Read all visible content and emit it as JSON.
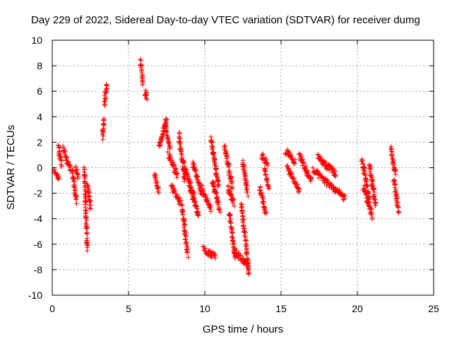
{
  "chart_data": {
    "type": "scatter",
    "title": "Day 229 of 2022, Sidereal Day-to-day VTEC variation (SDTVAR) for receiver dumg",
    "xlabel": "GPS time / hours",
    "ylabel": "SDTVAR / TECUs",
    "xlim": [
      0,
      25
    ],
    "ylim": [
      -10,
      10
    ],
    "xticks": [
      0,
      5,
      10,
      15,
      20,
      25
    ],
    "yticks": [
      -10,
      -8,
      -6,
      -4,
      -2,
      0,
      2,
      4,
      6,
      8,
      10
    ],
    "grid": true,
    "marker": "+",
    "color": "#ff0000",
    "segments": [
      {
        "x0": 0.1,
        "x1": 0.45,
        "y0": -0.3,
        "y1": -0.8
      },
      {
        "x0": 0.4,
        "x1": 0.6,
        "y0": 1.8,
        "y1": 0.2
      },
      {
        "x0": 0.7,
        "x1": 1.2,
        "y0": 1.5,
        "y1": -0.2
      },
      {
        "x0": 1.3,
        "x1": 1.6,
        "y0": -0.2,
        "y1": -2.6
      },
      {
        "x0": 1.5,
        "x1": 1.7,
        "y0": -0.1,
        "y1": -0.6
      },
      {
        "x0": 2.1,
        "x1": 2.3,
        "y0": 0.1,
        "y1": -6.5
      },
      {
        "x0": 2.3,
        "x1": 2.5,
        "y0": -1.2,
        "y1": -3.1
      },
      {
        "x0": 3.3,
        "x1": 3.4,
        "y0": 2.4,
        "y1": 3.9
      },
      {
        "x0": 3.4,
        "x1": 3.6,
        "y0": 5.0,
        "y1": 6.5
      },
      {
        "x0": 5.8,
        "x1": 5.95,
        "y0": 8.4,
        "y1": 6.6
      },
      {
        "x0": 6.1,
        "x1": 6.2,
        "y0": 5.9,
        "y1": 5.5
      },
      {
        "x0": 6.7,
        "x1": 7.0,
        "y0": -0.4,
        "y1": -1.9
      },
      {
        "x0": 7.0,
        "x1": 7.5,
        "y0": 1.6,
        "y1": 3.8
      },
      {
        "x0": 7.4,
        "x1": 7.7,
        "y0": 3.6,
        "y1": 1.5
      },
      {
        "x0": 7.6,
        "x1": 8.2,
        "y0": 1.0,
        "y1": -0.6
      },
      {
        "x0": 7.8,
        "x1": 8.4,
        "y0": -1.4,
        "y1": -2.8
      },
      {
        "x0": 8.3,
        "x1": 8.7,
        "y0": 2.6,
        "y1": -1.0
      },
      {
        "x0": 8.5,
        "x1": 8.9,
        "y0": -3.0,
        "y1": -6.9
      },
      {
        "x0": 8.6,
        "x1": 9.3,
        "y0": 0.3,
        "y1": -2.2
      },
      {
        "x0": 9.0,
        "x1": 9.6,
        "y0": -1.5,
        "y1": -3.8
      },
      {
        "x0": 9.2,
        "x1": 9.8,
        "y0": 0.4,
        "y1": -2.0
      },
      {
        "x0": 9.8,
        "x1": 10.4,
        "y0": -1.5,
        "y1": -3.3
      },
      {
        "x0": 9.9,
        "x1": 10.7,
        "y0": -6.4,
        "y1": -7.0
      },
      {
        "x0": 10.4,
        "x1": 10.9,
        "y0": 2.3,
        "y1": -1.5
      },
      {
        "x0": 10.5,
        "x1": 11.0,
        "y0": -1.0,
        "y1": -3.3
      },
      {
        "x0": 11.3,
        "x1": 11.8,
        "y0": 1.8,
        "y1": -1.5
      },
      {
        "x0": 11.5,
        "x1": 11.9,
        "y0": -1.5,
        "y1": -2.8
      },
      {
        "x0": 11.6,
        "x1": 12.0,
        "y0": -3.5,
        "y1": -7.0
      },
      {
        "x0": 11.9,
        "x1": 12.8,
        "y0": -6.5,
        "y1": -7.6
      },
      {
        "x0": 12.4,
        "x1": 12.9,
        "y0": -2.8,
        "y1": -8.4
      },
      {
        "x0": 12.5,
        "x1": 12.8,
        "y0": 0.5,
        "y1": -2.0
      },
      {
        "x0": 13.7,
        "x1": 14.1,
        "y0": 1.0,
        "y1": 0.3
      },
      {
        "x0": 13.6,
        "x1": 14.0,
        "y0": -1.5,
        "y1": -3.5
      },
      {
        "x0": 13.9,
        "x1": 14.2,
        "y0": 0.0,
        "y1": -1.6
      },
      {
        "x0": 15.3,
        "x1": 15.9,
        "y0": 1.3,
        "y1": 0.5
      },
      {
        "x0": 15.4,
        "x1": 16.2,
        "y0": 0.0,
        "y1": -1.8
      },
      {
        "x0": 16.2,
        "x1": 16.7,
        "y0": 1.0,
        "y1": -0.3
      },
      {
        "x0": 16.6,
        "x1": 17.0,
        "y0": -0.3,
        "y1": -1.0
      },
      {
        "x0": 17.1,
        "x1": 19.2,
        "y0": -0.2,
        "y1": -2.4
      },
      {
        "x0": 17.4,
        "x1": 18.6,
        "y0": 0.8,
        "y1": -0.5
      },
      {
        "x0": 20.3,
        "x1": 20.8,
        "y0": 0.6,
        "y1": -2.6
      },
      {
        "x0": 20.4,
        "x1": 21.0,
        "y0": -1.5,
        "y1": -3.8
      },
      {
        "x0": 20.8,
        "x1": 21.2,
        "y0": 0.2,
        "y1": -3.0
      },
      {
        "x0": 22.2,
        "x1": 22.5,
        "y0": 1.5,
        "y1": -0.5
      },
      {
        "x0": 22.4,
        "x1": 22.7,
        "y0": -1.0,
        "y1": -3.5
      }
    ]
  }
}
